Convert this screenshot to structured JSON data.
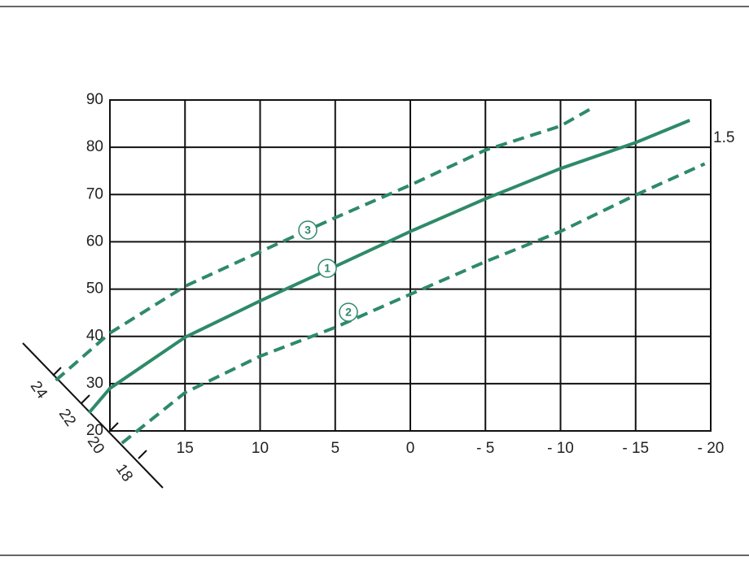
{
  "chart_data": {
    "type": "line",
    "xlim": [
      20,
      -20
    ],
    "xticks": [
      15,
      10,
      5,
      0,
      {
        "value": -5,
        "label": "- 5"
      },
      {
        "value": -10,
        "label": "- 10"
      },
      {
        "value": -15,
        "label": "- 15"
      },
      {
        "value": -20,
        "label": "- 20"
      }
    ],
    "ylim": [
      20,
      90
    ],
    "yticks": [
      20,
      30,
      40,
      50,
      60,
      70,
      80,
      90
    ],
    "grid": true,
    "room_temperature_ticks": [
      24,
      22,
      20,
      18
    ],
    "annotation": "1.5",
    "series": [
      {
        "name": "1",
        "color": "#2e8a68",
        "line_style": "solid",
        "x": [
          21.4,
          20,
          15,
          10,
          5,
          0,
          -5,
          -10,
          -15,
          -18.6
        ],
        "values": [
          23.8,
          29,
          39.8,
          47.5,
          54.8,
          62.2,
          69.1,
          75.5,
          81,
          85.7
        ]
      },
      {
        "name": "2",
        "color": "#2e8a68",
        "line_style": "dashed",
        "x": [
          19.2,
          15,
          10,
          5,
          0,
          -5,
          -10,
          -15,
          -19.6
        ],
        "values": [
          17.4,
          28.1,
          35.8,
          41.9,
          48.9,
          55.8,
          62.2,
          69.9,
          76.5
        ]
      },
      {
        "name": "3",
        "color": "#2e8a68",
        "line_style": "dashed",
        "x": [
          23.6,
          20,
          15,
          10,
          5,
          0,
          -5,
          -10,
          -12.1
        ],
        "values": [
          30.7,
          40.7,
          50.6,
          57.9,
          65.1,
          72,
          79.4,
          84.5,
          88.3
        ]
      }
    ]
  }
}
